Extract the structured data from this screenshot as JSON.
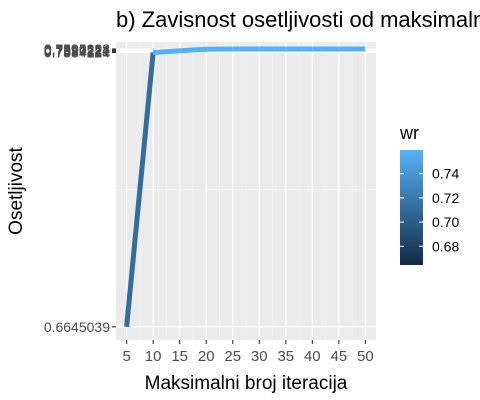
{
  "chart_data": {
    "type": "line",
    "title": "b) Zavisnost osetljivosti od maksimalnog broja iteracija",
    "xlabel": "Maksimalni broj iteracija",
    "ylabel": "Osetljivost",
    "x_ticks": [
      5,
      10,
      15,
      20,
      25,
      30,
      35,
      40,
      45,
      50
    ],
    "y_ticks": [
      0.6645039,
      0.7584224,
      0.7587221,
      0.7590221,
      0.7592224,
      0.7595228,
      0.7596228
    ],
    "y_tick_labels": [
      "0.6645039",
      "0.7584224",
      "0.7587221",
      "0.7590221",
      "0.7592224",
      "0.7595228",
      "0.7596228"
    ],
    "xlim": [
      3,
      52
    ],
    "ylim": [
      0.66,
      0.762
    ],
    "grid": true,
    "panel_background": "#ebebeb",
    "series": [
      {
        "x": [
          5,
          10,
          15,
          20,
          25,
          30,
          35,
          40,
          45,
          50
        ],
        "values": [
          0.6645039,
          0.7584224,
          0.7590221,
          0.7595228,
          0.7596228,
          0.7596228,
          0.7596228,
          0.7596228,
          0.7596228,
          0.7596228
        ]
      }
    ],
    "legend": {
      "title": "wr",
      "placement": "right",
      "ticks": [
        0.74,
        0.72,
        0.7,
        0.68
      ],
      "tick_labels": [
        "0.74",
        "0.72",
        "0.70",
        "0.68"
      ],
      "min": 0.6645039,
      "max": 0.7596228,
      "color_low": "#132b43",
      "color_high": "#56b1f7"
    }
  }
}
